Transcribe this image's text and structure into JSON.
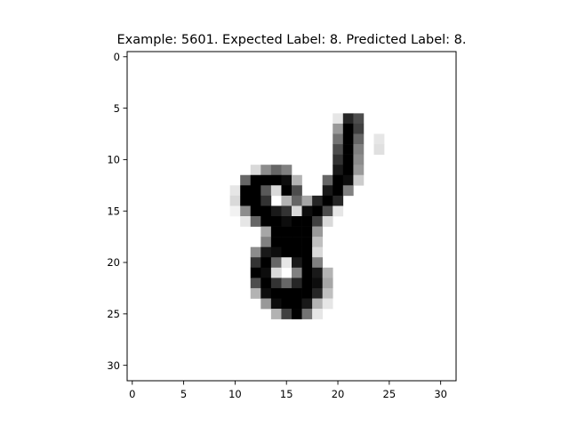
{
  "chart_data": {
    "type": "heatmap",
    "title": "Example: 5601. Expected Label: 8. Predicted Label: 8.",
    "xlabel": "",
    "ylabel": "",
    "colormap": "gray_r",
    "grid": false,
    "shape": [
      32,
      32
    ],
    "xlim": [
      -0.5,
      31.5
    ],
    "ylim": [
      31.5,
      -0.5
    ],
    "x_ticks": [
      0,
      5,
      10,
      15,
      20,
      25,
      30
    ],
    "x_tick_labels": [
      "0",
      "5",
      "10",
      "15",
      "20",
      "25",
      "30"
    ],
    "y_ticks": [
      0,
      5,
      10,
      15,
      20,
      25,
      30
    ],
    "y_tick_labels": [
      "0",
      "5",
      "10",
      "15",
      "20",
      "25",
      "30"
    ],
    "pixels": [
      {
        "r": 6,
        "c": 20,
        "v": 0.1
      },
      {
        "r": 6,
        "c": 21,
        "v": 0.85
      },
      {
        "r": 6,
        "c": 22,
        "v": 0.7
      },
      {
        "r": 7,
        "c": 20,
        "v": 0.4
      },
      {
        "r": 7,
        "c": 21,
        "v": 1.0
      },
      {
        "r": 7,
        "c": 22,
        "v": 0.75
      },
      {
        "r": 8,
        "c": 20,
        "v": 0.55
      },
      {
        "r": 8,
        "c": 21,
        "v": 1.0
      },
      {
        "r": 8,
        "c": 22,
        "v": 0.6
      },
      {
        "r": 8,
        "c": 24,
        "v": 0.1
      },
      {
        "r": 9,
        "c": 20,
        "v": 0.7
      },
      {
        "r": 9,
        "c": 21,
        "v": 1.0
      },
      {
        "r": 9,
        "c": 22,
        "v": 0.5
      },
      {
        "r": 9,
        "c": 24,
        "v": 0.12
      },
      {
        "r": 10,
        "c": 20,
        "v": 0.8
      },
      {
        "r": 10,
        "c": 21,
        "v": 1.0
      },
      {
        "r": 10,
        "c": 22,
        "v": 0.45
      },
      {
        "r": 11,
        "c": 12,
        "v": 0.15
      },
      {
        "r": 11,
        "c": 13,
        "v": 0.45
      },
      {
        "r": 11,
        "c": 14,
        "v": 0.6
      },
      {
        "r": 11,
        "c": 15,
        "v": 0.5
      },
      {
        "r": 11,
        "c": 20,
        "v": 0.9
      },
      {
        "r": 11,
        "c": 21,
        "v": 1.0
      },
      {
        "r": 11,
        "c": 22,
        "v": 0.4
      },
      {
        "r": 12,
        "c": 11,
        "v": 0.6
      },
      {
        "r": 12,
        "c": 12,
        "v": 1.0
      },
      {
        "r": 12,
        "c": 13,
        "v": 1.0
      },
      {
        "r": 12,
        "c": 14,
        "v": 1.0
      },
      {
        "r": 12,
        "c": 15,
        "v": 0.95
      },
      {
        "r": 12,
        "c": 16,
        "v": 0.3
      },
      {
        "r": 12,
        "c": 19,
        "v": 0.6
      },
      {
        "r": 12,
        "c": 20,
        "v": 1.0
      },
      {
        "r": 12,
        "c": 21,
        "v": 0.95
      },
      {
        "r": 12,
        "c": 22,
        "v": 0.2
      },
      {
        "r": 13,
        "c": 10,
        "v": 0.1
      },
      {
        "r": 13,
        "c": 11,
        "v": 1.0
      },
      {
        "r": 13,
        "c": 12,
        "v": 1.0
      },
      {
        "r": 13,
        "c": 13,
        "v": 0.65
      },
      {
        "r": 13,
        "c": 14,
        "v": 0.15
      },
      {
        "r": 13,
        "c": 15,
        "v": 1.0
      },
      {
        "r": 13,
        "c": 16,
        "v": 0.7
      },
      {
        "r": 13,
        "c": 19,
        "v": 0.9
      },
      {
        "r": 13,
        "c": 20,
        "v": 1.0
      },
      {
        "r": 13,
        "c": 21,
        "v": 0.5
      },
      {
        "r": 14,
        "c": 10,
        "v": 0.15
      },
      {
        "r": 14,
        "c": 11,
        "v": 1.0
      },
      {
        "r": 14,
        "c": 12,
        "v": 1.0
      },
      {
        "r": 14,
        "c": 13,
        "v": 0.8
      },
      {
        "r": 14,
        "c": 15,
        "v": 0.3
      },
      {
        "r": 14,
        "c": 16,
        "v": 0.6
      },
      {
        "r": 14,
        "c": 17,
        "v": 0.35
      },
      {
        "r": 14,
        "c": 18,
        "v": 0.85
      },
      {
        "r": 14,
        "c": 19,
        "v": 1.0
      },
      {
        "r": 14,
        "c": 20,
        "v": 0.85
      },
      {
        "r": 15,
        "c": 10,
        "v": 0.05
      },
      {
        "r": 15,
        "c": 11,
        "v": 0.45
      },
      {
        "r": 15,
        "c": 12,
        "v": 1.0
      },
      {
        "r": 15,
        "c": 13,
        "v": 1.0
      },
      {
        "r": 15,
        "c": 14,
        "v": 0.9
      },
      {
        "r": 15,
        "c": 15,
        "v": 0.8
      },
      {
        "r": 15,
        "c": 16,
        "v": 0.15
      },
      {
        "r": 15,
        "c": 17,
        "v": 0.95
      },
      {
        "r": 15,
        "c": 18,
        "v": 1.0
      },
      {
        "r": 15,
        "c": 19,
        "v": 0.7
      },
      {
        "r": 15,
        "c": 20,
        "v": 0.1
      },
      {
        "r": 16,
        "c": 11,
        "v": 0.1
      },
      {
        "r": 16,
        "c": 12,
        "v": 0.6
      },
      {
        "r": 16,
        "c": 13,
        "v": 1.0
      },
      {
        "r": 16,
        "c": 14,
        "v": 1.0
      },
      {
        "r": 16,
        "c": 15,
        "v": 0.95
      },
      {
        "r": 16,
        "c": 16,
        "v": 1.0
      },
      {
        "r": 16,
        "c": 17,
        "v": 1.0
      },
      {
        "r": 16,
        "c": 18,
        "v": 0.75
      },
      {
        "r": 16,
        "c": 19,
        "v": 0.15
      },
      {
        "r": 17,
        "c": 13,
        "v": 0.35
      },
      {
        "r": 17,
        "c": 14,
        "v": 1.0
      },
      {
        "r": 17,
        "c": 15,
        "v": 1.0
      },
      {
        "r": 17,
        "c": 16,
        "v": 1.0
      },
      {
        "r": 17,
        "c": 17,
        "v": 1.0
      },
      {
        "r": 17,
        "c": 18,
        "v": 0.4
      },
      {
        "r": 18,
        "c": 13,
        "v": 0.5
      },
      {
        "r": 18,
        "c": 14,
        "v": 1.0
      },
      {
        "r": 18,
        "c": 15,
        "v": 1.0
      },
      {
        "r": 18,
        "c": 16,
        "v": 1.0
      },
      {
        "r": 18,
        "c": 17,
        "v": 1.0
      },
      {
        "r": 18,
        "c": 18,
        "v": 0.25
      },
      {
        "r": 19,
        "c": 12,
        "v": 0.45
      },
      {
        "r": 19,
        "c": 13,
        "v": 0.9
      },
      {
        "r": 19,
        "c": 14,
        "v": 0.95
      },
      {
        "r": 19,
        "c": 15,
        "v": 1.0
      },
      {
        "r": 19,
        "c": 16,
        "v": 1.0
      },
      {
        "r": 19,
        "c": 17,
        "v": 1.0
      },
      {
        "r": 19,
        "c": 18,
        "v": 0.15
      },
      {
        "r": 20,
        "c": 12,
        "v": 0.8
      },
      {
        "r": 20,
        "c": 13,
        "v": 1.0
      },
      {
        "r": 20,
        "c": 14,
        "v": 0.6
      },
      {
        "r": 20,
        "c": 15,
        "v": 0.1
      },
      {
        "r": 20,
        "c": 16,
        "v": 0.9
      },
      {
        "r": 20,
        "c": 17,
        "v": 1.0
      },
      {
        "r": 20,
        "c": 18,
        "v": 0.5
      },
      {
        "r": 21,
        "c": 12,
        "v": 1.0
      },
      {
        "r": 21,
        "c": 13,
        "v": 0.95
      },
      {
        "r": 21,
        "c": 14,
        "v": 0.15
      },
      {
        "r": 21,
        "c": 16,
        "v": 0.5
      },
      {
        "r": 21,
        "c": 17,
        "v": 1.0
      },
      {
        "r": 21,
        "c": 18,
        "v": 0.9
      },
      {
        "r": 21,
        "c": 19,
        "v": 0.3
      },
      {
        "r": 22,
        "c": 12,
        "v": 0.7
      },
      {
        "r": 22,
        "c": 13,
        "v": 1.0
      },
      {
        "r": 22,
        "c": 14,
        "v": 0.8
      },
      {
        "r": 22,
        "c": 15,
        "v": 0.6
      },
      {
        "r": 22,
        "c": 16,
        "v": 0.85
      },
      {
        "r": 22,
        "c": 17,
        "v": 1.0
      },
      {
        "r": 22,
        "c": 18,
        "v": 0.95
      },
      {
        "r": 22,
        "c": 19,
        "v": 0.35
      },
      {
        "r": 23,
        "c": 12,
        "v": 0.3
      },
      {
        "r": 23,
        "c": 13,
        "v": 0.95
      },
      {
        "r": 23,
        "c": 14,
        "v": 1.0
      },
      {
        "r": 23,
        "c": 15,
        "v": 1.0
      },
      {
        "r": 23,
        "c": 16,
        "v": 1.0
      },
      {
        "r": 23,
        "c": 17,
        "v": 1.0
      },
      {
        "r": 23,
        "c": 18,
        "v": 0.85
      },
      {
        "r": 23,
        "c": 19,
        "v": 0.25
      },
      {
        "r": 24,
        "c": 13,
        "v": 0.4
      },
      {
        "r": 24,
        "c": 14,
        "v": 0.95
      },
      {
        "r": 24,
        "c": 15,
        "v": 1.0
      },
      {
        "r": 24,
        "c": 16,
        "v": 1.0
      },
      {
        "r": 24,
        "c": 17,
        "v": 0.9
      },
      {
        "r": 24,
        "c": 18,
        "v": 0.3
      },
      {
        "r": 24,
        "c": 19,
        "v": 0.1
      },
      {
        "r": 25,
        "c": 14,
        "v": 0.3
      },
      {
        "r": 25,
        "c": 15,
        "v": 0.75
      },
      {
        "r": 25,
        "c": 16,
        "v": 1.0
      },
      {
        "r": 25,
        "c": 17,
        "v": 0.55
      },
      {
        "r": 25,
        "c": 18,
        "v": 0.1
      }
    ]
  }
}
